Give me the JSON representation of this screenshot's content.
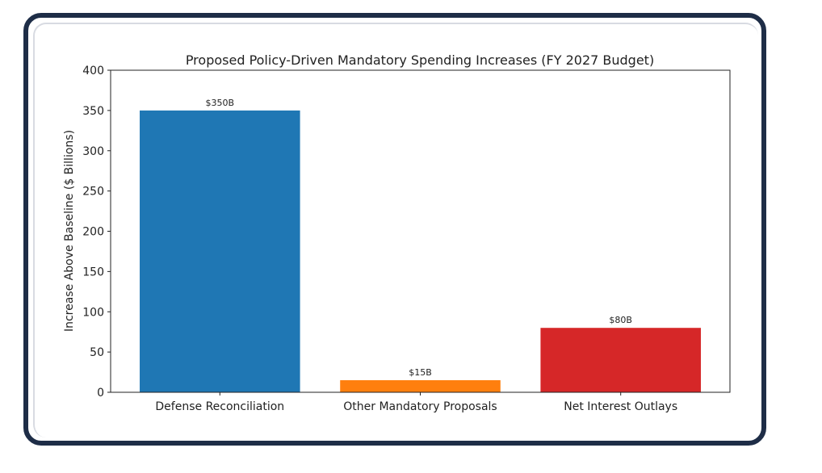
{
  "chart_data": {
    "type": "bar",
    "title": "Proposed Policy-Driven Mandatory Spending Increases (FY 2027 Budget)",
    "xlabel": "",
    "ylabel": "Increase Above Baseline ($ Billions)",
    "categories": [
      "Defense Reconciliation",
      "Other Mandatory Proposals",
      "Net Interest Outlays"
    ],
    "values": [
      350,
      15,
      80
    ],
    "data_labels": [
      "$350B",
      "$15B",
      "$80B"
    ],
    "colors": [
      "#1f77b4",
      "#ff7f0e",
      "#d62728"
    ],
    "ylim": [
      0,
      400
    ],
    "yticks": [
      0,
      50,
      100,
      150,
      200,
      250,
      300,
      350,
      400
    ],
    "grid": false,
    "legend": "none"
  },
  "frame": {
    "border_color": "#1e2d47"
  }
}
